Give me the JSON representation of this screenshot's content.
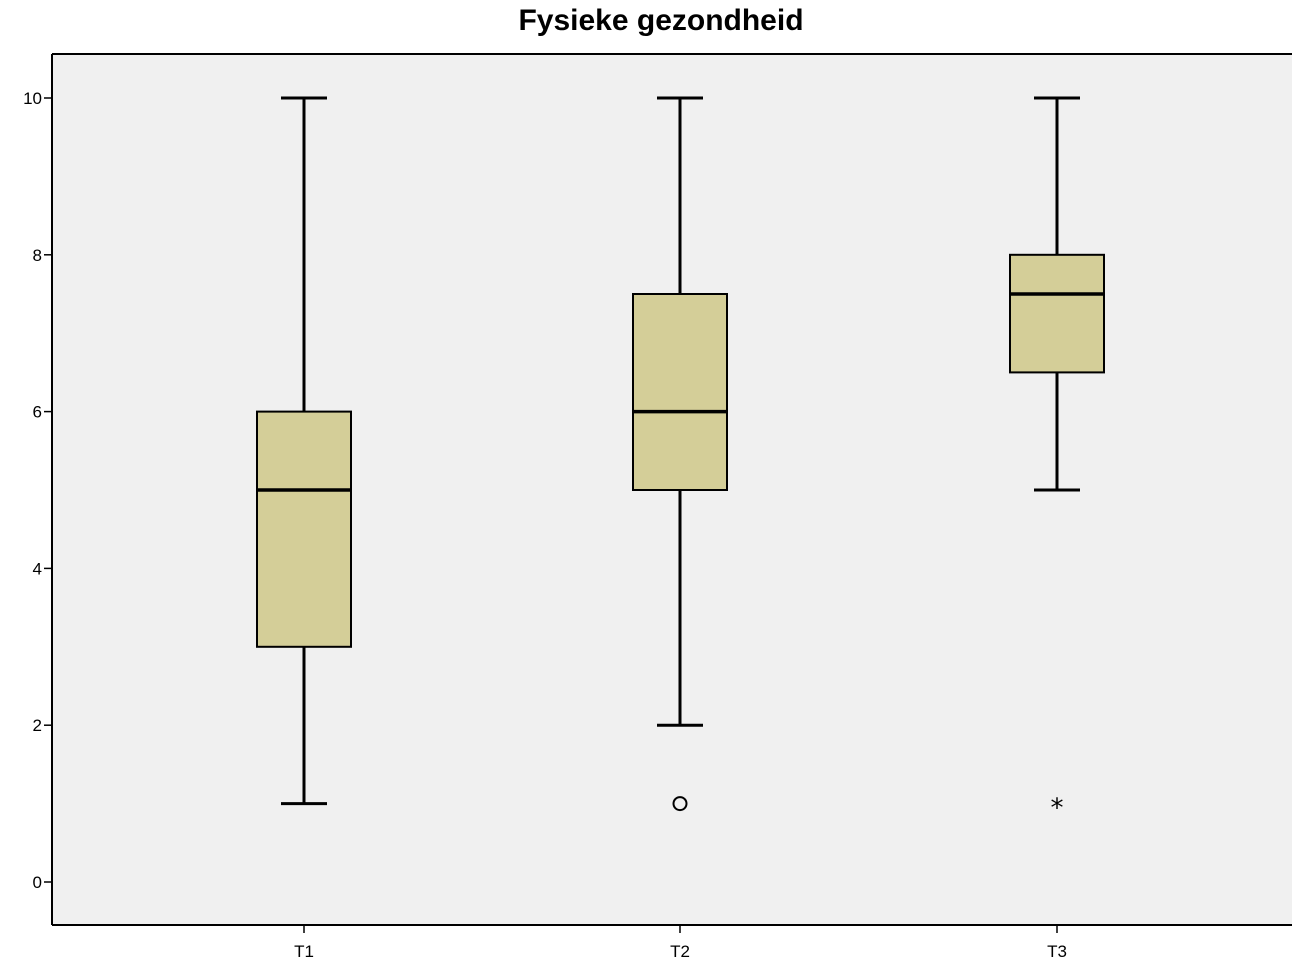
{
  "chart_data": {
    "type": "boxplot",
    "title": "Fysieke gezondheid",
    "xlabel": "",
    "ylabel": "",
    "ylim": [
      -0.6,
      10.6
    ],
    "yticks": [
      0,
      2,
      4,
      6,
      8,
      10
    ],
    "grid": false,
    "colors": {
      "box_fill": "#d4ce98",
      "plot_bg": "#f0f0f0",
      "stroke": "#000000"
    },
    "categories": [
      "T1",
      "T2",
      "T3"
    ],
    "boxes": [
      {
        "category": "T1",
        "whisker_low": 1,
        "q1": 3,
        "median": 5,
        "q3": 6,
        "whisker_high": 10,
        "outliers": [],
        "extremes": []
      },
      {
        "category": "T2",
        "whisker_low": 2,
        "q1": 5,
        "median": 6,
        "q3": 7.5,
        "whisker_high": 10,
        "outliers": [
          1
        ],
        "extremes": []
      },
      {
        "category": "T3",
        "whisker_low": 5,
        "q1": 6.5,
        "median": 7.5,
        "q3": 8,
        "whisker_high": 10,
        "outliers": [],
        "extremes": [
          1
        ]
      }
    ]
  }
}
